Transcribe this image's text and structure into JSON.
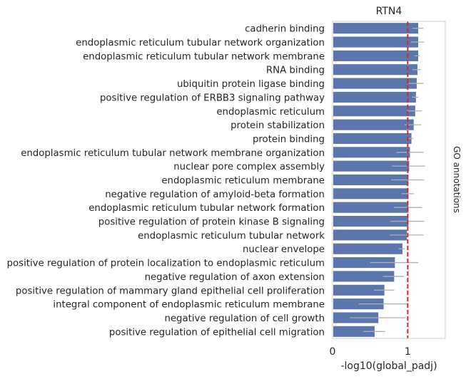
{
  "chart_data": {
    "type": "bar",
    "orientation": "horizontal",
    "title": "RTN4",
    "xlabel": "-log10(global_padj)",
    "ylabel": "",
    "right_label": "GO annotations",
    "xlim": [
      0,
      1.5
    ],
    "xticks": [
      0,
      1
    ],
    "reference_line": 1.0,
    "grid": false,
    "colors": {
      "bar": "#5a76ac",
      "errorbar": "#b0b0b0",
      "refline": "#d62728",
      "frame": "#cccccc"
    },
    "categories": [
      "cadherin binding",
      "endoplasmic reticulum tubular network organization",
      "endoplasmic reticulum tubular network membrane",
      "RNA binding",
      "ubiquitin protein ligase binding",
      "positive regulation of ERBB3 signaling pathway",
      "endoplasmic reticulum",
      "protein stabilization",
      "protein binding",
      "endoplasmic reticulum tubular network membrane organization",
      "nuclear pore complex assembly",
      "endoplasmic reticulum membrane",
      "negative regulation of amyloid-beta formation",
      "endoplasmic reticulum tubular network formation",
      "positive regulation of protein kinase B signaling",
      "endoplasmic reticulum tubular network",
      "nuclear envelope",
      "positive regulation of protein localization to endoplasmic reticulum",
      "negative regulation of axon extension",
      "positive regulation of mammary gland epithelial cell proliferation",
      "integral component of endoplasmic reticulum membrane",
      "negative regulation of cell growth",
      "positive regulation of epithelial cell migration"
    ],
    "values": [
      1.13,
      1.13,
      1.13,
      1.12,
      1.11,
      1.1,
      1.09,
      1.07,
      1.04,
      1.02,
      1.01,
      1.0,
      1.0,
      1.0,
      1.0,
      0.98,
      0.92,
      0.82,
      0.81,
      0.68,
      0.67,
      0.6,
      0.55
    ],
    "error_low": [
      1.06,
      1.04,
      1.09,
      1.06,
      1.01,
      1.06,
      0.99,
      0.96,
      1.01,
      0.85,
      0.79,
      0.78,
      0.92,
      0.82,
      0.77,
      0.76,
      0.88,
      0.5,
      0.67,
      0.55,
      0.35,
      0.23,
      0.41
    ],
    "error_high": [
      1.21,
      1.22,
      1.16,
      1.17,
      1.21,
      1.14,
      1.19,
      1.18,
      1.07,
      1.21,
      1.23,
      1.22,
      1.08,
      1.19,
      1.22,
      1.21,
      0.96,
      1.14,
      0.95,
      0.82,
      1.0,
      0.97,
      0.7
    ]
  }
}
